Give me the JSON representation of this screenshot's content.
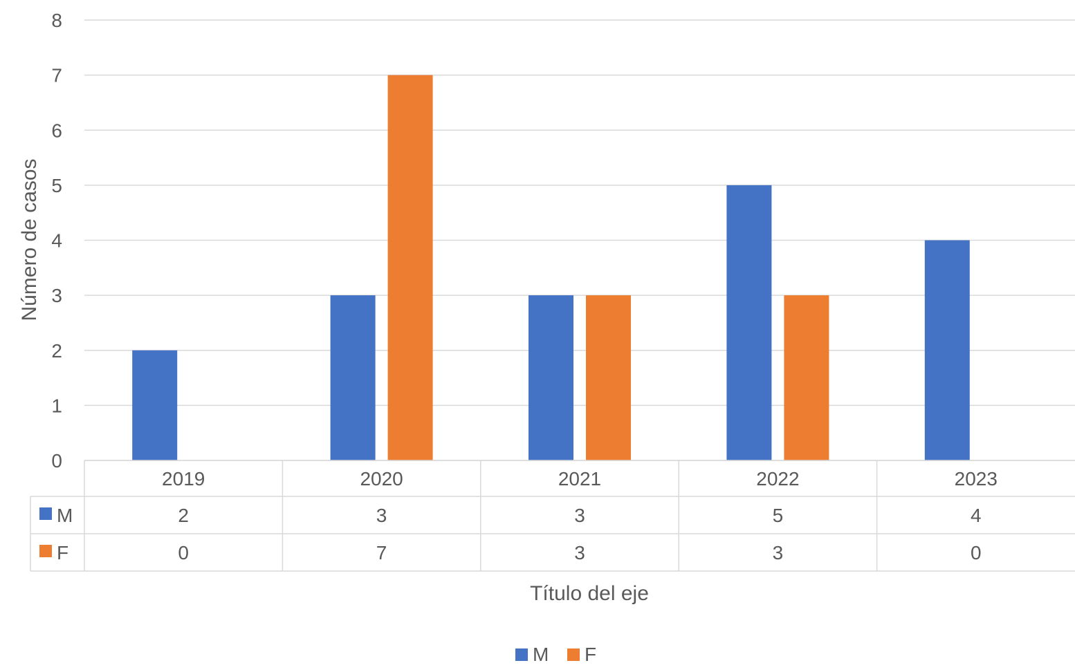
{
  "chart_data": {
    "type": "bar",
    "title": "",
    "categories": [
      "2019",
      "2020",
      "2021",
      "2022",
      "2023"
    ],
    "series": [
      {
        "name": "M",
        "values": [
          2,
          3,
          3,
          5,
          4
        ],
        "color": "#4472C4"
      },
      {
        "name": "F",
        "values": [
          0,
          7,
          3,
          3,
          0
        ],
        "color": "#ED7D31"
      }
    ],
    "ylabel": "Número de casos",
    "xlabel": "Título del eje",
    "ylim": [
      0,
      8
    ],
    "yticks": [
      "0",
      "1",
      "2",
      "3",
      "4",
      "5",
      "6",
      "7",
      "8"
    ],
    "grid": true,
    "legend_position": "bottom",
    "data_table": true
  },
  "colors": {
    "grid": "#d9d9d9",
    "text": "#595959"
  }
}
